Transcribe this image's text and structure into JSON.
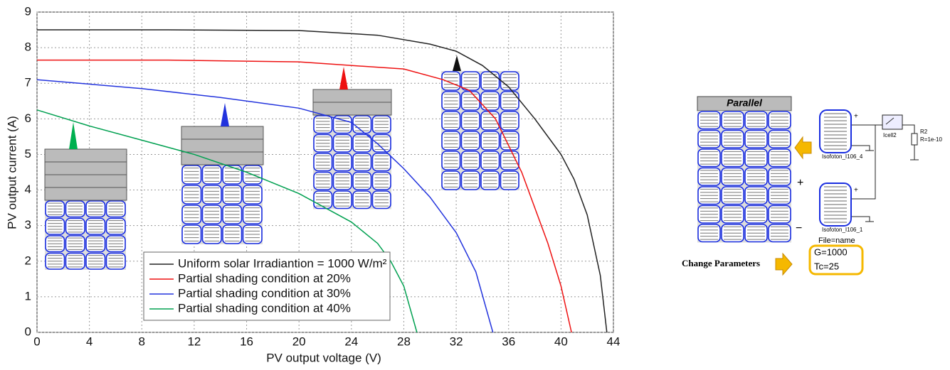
{
  "chart_data": {
    "type": "line",
    "xlabel": "PV output voltage (V)",
    "ylabel": "PV output current (A)",
    "xlim": [
      0,
      44
    ],
    "ylim": [
      0,
      9
    ],
    "xticks": [
      0,
      4,
      8,
      12,
      16,
      20,
      24,
      28,
      32,
      36,
      40,
      44
    ],
    "yticks": [
      0,
      1,
      2,
      3,
      4,
      5,
      6,
      7,
      8,
      9
    ],
    "grid": true,
    "legend": "lower center",
    "series": [
      {
        "name": "Uniform solar Irradiantion = 1000 W/m²",
        "color": "#222222",
        "x": [
          0,
          10,
          20,
          26,
          30,
          32,
          34,
          36,
          38,
          40,
          41,
          42,
          43,
          43.5
        ],
        "values": [
          8.5,
          8.5,
          8.48,
          8.35,
          8.1,
          7.9,
          7.5,
          6.9,
          6.0,
          5.0,
          4.3,
          3.3,
          1.6,
          0
        ]
      },
      {
        "name": "Partial shading condition at 20%",
        "color": "#ee1111",
        "x": [
          0,
          10,
          20,
          28,
          31,
          33,
          35,
          37,
          38,
          39,
          40,
          40.8
        ],
        "values": [
          7.65,
          7.65,
          7.6,
          7.4,
          7.1,
          6.8,
          6.0,
          4.5,
          3.5,
          2.5,
          1.3,
          0
        ]
      },
      {
        "name": "Partial shading condition at 30%",
        "color": "#2233dd",
        "x": [
          0,
          8,
          14,
          20,
          24,
          26,
          28,
          30,
          32,
          33.5,
          34.8
        ],
        "values": [
          7.1,
          6.85,
          6.6,
          6.3,
          5.9,
          5.3,
          4.6,
          3.8,
          2.8,
          1.7,
          0
        ]
      },
      {
        "name": "Partial shading condition at 40%",
        "color": "#00a050",
        "x": [
          0,
          4,
          8,
          12,
          16,
          20,
          24,
          26,
          27,
          28,
          29
        ],
        "values": [
          6.25,
          5.8,
          5.4,
          5.0,
          4.5,
          3.9,
          3.1,
          2.5,
          2.0,
          1.3,
          0
        ]
      }
    ]
  },
  "diagram": {
    "panel_title": "Parallel",
    "plus": "+",
    "minus": "−",
    "meter": "Icell2",
    "resistor": "R2",
    "resistor_value": "R=1e-10",
    "module_top": "Isofoton_I106_4",
    "module_bottom": "Isofoton_I106_1",
    "file": "File=name",
    "param_g": "G=1000",
    "param_tc": "Tc=25",
    "change": "Change Parameters"
  }
}
